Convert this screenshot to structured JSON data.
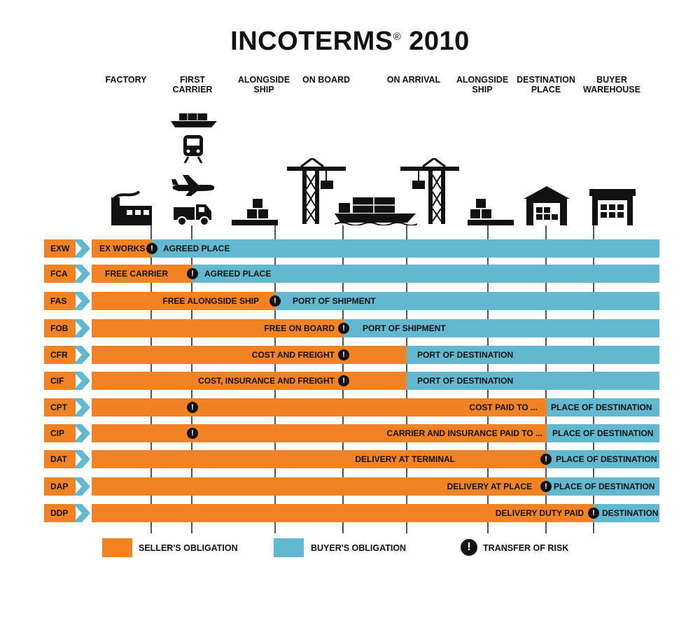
{
  "title": "INCOTERMS",
  "title_mark": "®",
  "title_year": "2010",
  "stages": [
    "FACTORY",
    "FIRST\nCARRIER",
    "ALONGSIDE\nSHIP",
    "ON BOARD",
    "ON ARRIVAL",
    "ALONGSIDE\nSHIP",
    "DESTINATION\nPLACE",
    "BUYER\nWAREHOUSE"
  ],
  "risk_symbol": "!",
  "colors": {
    "seller": "#f28325",
    "buyer": "#62b8cf",
    "chevron": "#62b8cf",
    "risk": "#111111"
  },
  "icons": [
    "factory-icon",
    "container-ship-icon",
    "train-icon",
    "airplane-icon",
    "truck-icon",
    "pallet-icon",
    "crane-icon",
    "cargo-ship-icon",
    "crane-icon",
    "pallet-icon",
    "warehouse-icon",
    "warehouse-icon"
  ],
  "terms": [
    {
      "code": "EXW",
      "seller_text": "EX WORKS",
      "buyer_text": "AGREED PLACE"
    },
    {
      "code": "FCA",
      "seller_text": "FREE CARRIER",
      "buyer_text": "AGREED PLACE"
    },
    {
      "code": "FAS",
      "seller_text": "FREE ALONGSIDE SHIP",
      "buyer_text": "PORT OF SHIPMENT"
    },
    {
      "code": "FOB",
      "seller_text": "FREE ON BOARD",
      "buyer_text": "PORT OF SHIPMENT"
    },
    {
      "code": "CFR",
      "seller_text": "COST AND FREIGHT",
      "buyer_text": "PORT OF DESTINATION"
    },
    {
      "code": "CIF",
      "seller_text": "COST, INSURANCE AND FREIGHT",
      "buyer_text": "PORT OF DESTINATION"
    },
    {
      "code": "CPT",
      "seller_text": "COST PAID TO ...",
      "buyer_text": "PLACE OF DESTINATION"
    },
    {
      "code": "CIP",
      "seller_text": "CARRIER AND INSURANCE PAID TO ...",
      "buyer_text": "PLACE OF DESTINATION"
    },
    {
      "code": "DAT",
      "seller_text": "DELIVERY AT TERMINAL",
      "buyer_text": "PLACE OF DESTINATION"
    },
    {
      "code": "DAP",
      "seller_text": "DELIVERY AT PLACE",
      "buyer_text": "PLACE OF DESTINATION"
    },
    {
      "code": "DDP",
      "seller_text": "DELIVERY DUTY PAID",
      "buyer_text": "DESTINATION"
    }
  ],
  "legend": {
    "seller": "SELLER'S OBLIGATION",
    "buyer": "BUYER'S OBLIGATION",
    "risk": "TRANSFER OF RISK"
  }
}
